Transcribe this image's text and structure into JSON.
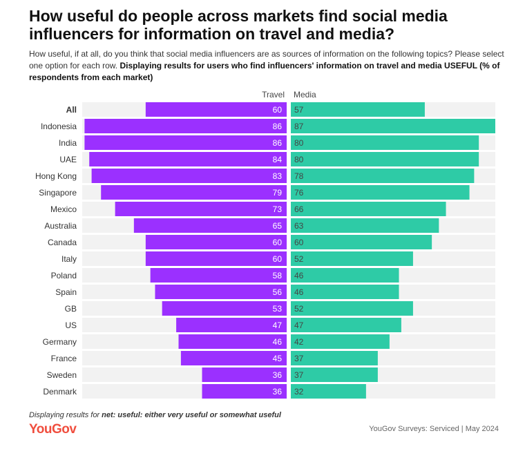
{
  "header": {
    "title": "How useful do people across markets find social media influencers for information on travel and media?",
    "subtitle_plain": "How useful, if at all, do you think that social media influencers are as sources of information on the following topics? Please select one option for each row.",
    "subtitle_bold": "Displaying results for users who find influencers' information on travel and media USEFUL (% of respondents from each market)"
  },
  "footer": {
    "note_prefix": "Displaying results for",
    "note_bold": "net: useful: either very useful or somewhat useful",
    "logo": "YouGov",
    "source": "YouGov Surveys: Serviced | May 2024"
  },
  "colors": {
    "travel": "#9b30ff",
    "media": "#2ecba6",
    "track": "#f2f2f2"
  },
  "chart_data": {
    "type": "bar",
    "orientation": "horizontal-diverging",
    "categories": [
      "All",
      "Indonesia",
      "India",
      "UAE",
      "Hong Kong",
      "Singapore",
      "Mexico",
      "Australia",
      "Canada",
      "Italy",
      "Poland",
      "Spain",
      "GB",
      "US",
      "Germany",
      "France",
      "Sweden",
      "Denmark"
    ],
    "bold_categories": [
      "All"
    ],
    "series": [
      {
        "name": "Travel",
        "values": [
          60,
          86,
          86,
          84,
          83,
          79,
          73,
          65,
          60,
          60,
          58,
          56,
          53,
          47,
          46,
          45,
          36,
          36
        ]
      },
      {
        "name": "Media",
        "values": [
          57,
          87,
          80,
          80,
          78,
          76,
          66,
          63,
          60,
          52,
          46,
          46,
          52,
          47,
          42,
          37,
          37,
          32
        ]
      }
    ]
  }
}
